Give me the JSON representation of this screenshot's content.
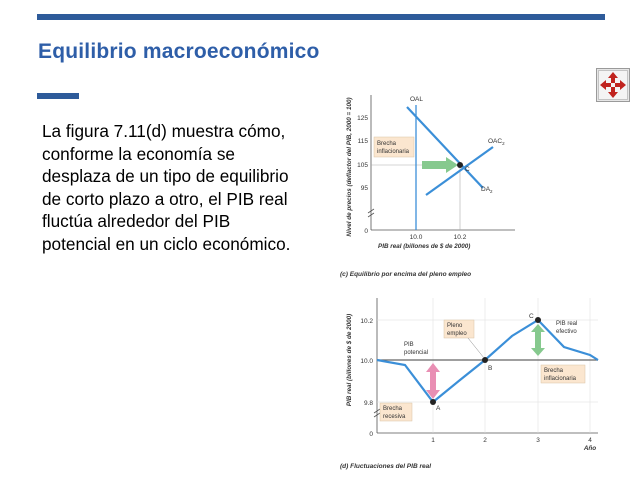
{
  "slide": {
    "title": "Equilibrio macroeconómico",
    "body": "La figura 7.11(d) muestra cómo, conforme la economía se desplaza de un tipo de equilibrio de corto plazo a otro, el PIB real fluctúa alrededor del PIB potencial en un ciclo económico."
  },
  "nav_button": {
    "icon": "four-way-arrows-icon",
    "color": "#c0231e"
  },
  "colors": {
    "accent_bar": "#2e5b9a",
    "title": "#2e5ea8",
    "chart_blue": "#3b8fd8",
    "arrow_green": "#86c98e",
    "arrow_pink": "#e98fb4"
  },
  "chart_top": {
    "ylabel": "Nivel de precios (deflactor del PIB, 2000 = 100)",
    "xlabel": "PIB real (billones de $ de 2000)",
    "caption": "(c) Equilibrio por encima del pleno empleo",
    "y_ticks": [
      "125",
      "115",
      "105",
      "95",
      "0"
    ],
    "x_ticks": [
      "10.0",
      "10.2"
    ],
    "curve_labels": {
      "oal": "OAL",
      "oac": "OAC",
      "oac_sub": "2",
      "da": "DA",
      "da_sub": "2",
      "point": "C"
    },
    "gap_label": [
      "Brecha",
      "inflacionaria"
    ]
  },
  "chart_bottom": {
    "ylabel": "PIB real (billones de $ de 2000)",
    "xlabel": "Año",
    "caption": "(d) Fluctuaciones del PIB real",
    "y_ticks": [
      "10.2",
      "10.0",
      "9.8",
      "0"
    ],
    "x_ticks": [
      "1",
      "2",
      "3",
      "4"
    ],
    "labels": {
      "pib_potencial": [
        "PIB",
        "potencial"
      ],
      "pleno_empleo": [
        "Pleno",
        "empleo"
      ],
      "pib_real_efectivo": [
        "PIB real",
        "efectivo"
      ],
      "brecha_inflacionaria": [
        "Brecha",
        "inflacionaria"
      ],
      "brecha_recesiva": [
        "Brecha",
        "recesiva"
      ],
      "point_a": "A",
      "point_b": "B",
      "point_c": "C"
    }
  },
  "chart_data": [
    {
      "type": "line",
      "title": "(c) Equilibrio por encima del pleno empleo",
      "xlabel": "PIB real (billones de $ de 2000)",
      "ylabel": "Nivel de precios (deflactor del PIB, 2000 = 100)",
      "ylim": [
        0,
        125
      ],
      "series": [
        {
          "name": "OAL",
          "x": [
            10.0,
            10.0
          ],
          "y": [
            0,
            125
          ]
        },
        {
          "name": "OAC2",
          "x": [
            9.85,
            10.2,
            10.36
          ],
          "y": [
            92,
            105,
            116
          ]
        },
        {
          "name": "DA2",
          "x": [
            10.0,
            10.2,
            10.38
          ],
          "y": [
            128,
            105,
            94
          ]
        }
      ],
      "points": [
        {
          "label": "C",
          "x": 10.2,
          "y": 105
        }
      ],
      "annotations": [
        "Brecha inflacionaria"
      ]
    },
    {
      "type": "line",
      "title": "(d) Fluctuaciones del PIB real",
      "xlabel": "Año",
      "ylabel": "PIB real (billones de $ de 2000)",
      "ylim": [
        0,
        10.3
      ],
      "series": [
        {
          "name": "PIB potencial",
          "x": [
            0,
            4.3
          ],
          "y": [
            10.0,
            10.0
          ]
        },
        {
          "name": "PIB real efectivo",
          "x": [
            0,
            0.5,
            1,
            1.5,
            2,
            2.5,
            3,
            3.5,
            4,
            4.3
          ],
          "y": [
            10.0,
            9.96,
            9.8,
            9.88,
            10.0,
            10.13,
            10.2,
            10.07,
            10.02,
            9.99
          ]
        }
      ],
      "points": [
        {
          "label": "A",
          "x": 1,
          "y": 9.8
        },
        {
          "label": "B",
          "x": 2,
          "y": 10.0
        },
        {
          "label": "C",
          "x": 3,
          "y": 10.2
        }
      ],
      "annotations": [
        "Pleno empleo",
        "Brecha inflacionaria",
        "Brecha recesiva"
      ]
    }
  ]
}
